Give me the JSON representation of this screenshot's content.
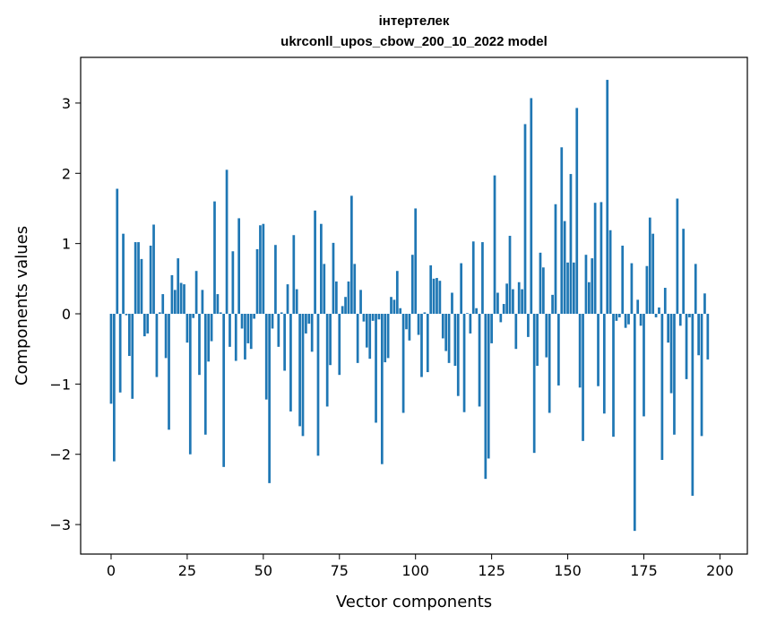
{
  "chart_data": {
    "type": "bar",
    "title": "інтертелек",
    "subtitle": "ukrconll_upos_cbow_200_10_2022 model",
    "xlabel": "Vector components",
    "ylabel": "Components values",
    "xlim": [
      -10,
      209
    ],
    "ylim": [
      -3.42,
      3.65
    ],
    "xticks": [
      0,
      25,
      50,
      75,
      100,
      125,
      150,
      175,
      200
    ],
    "yticks": [
      -3,
      -2,
      -1,
      0,
      1,
      2,
      3
    ],
    "xtick_labels": [
      "0",
      "25",
      "50",
      "75",
      "100",
      "125",
      "150",
      "175",
      "200"
    ],
    "ytick_labels": [
      "−3",
      "−2",
      "−1",
      "0",
      "1",
      "2",
      "3"
    ],
    "grid": false,
    "bar_color": "#1f77b4",
    "values": [
      -1.28,
      -2.1,
      1.78,
      -1.12,
      1.14,
      -0.02,
      -0.6,
      -1.21,
      1.02,
      1.02,
      0.78,
      -0.32,
      -0.28,
      0.97,
      1.27,
      -0.9,
      0.02,
      0.28,
      -0.63,
      -1.65,
      0.55,
      0.34,
      0.79,
      0.44,
      0.42,
      -0.41,
      -2.0,
      -0.06,
      0.61,
      -0.87,
      0.34,
      -1.72,
      -0.68,
      -0.39,
      1.6,
      0.28,
      0.02,
      -2.18,
      2.05,
      -0.47,
      0.89,
      -0.67,
      1.36,
      -0.21,
      -0.65,
      -0.42,
      -0.5,
      -0.07,
      0.92,
      1.26,
      1.28,
      -1.22,
      -2.41,
      -0.21,
      0.98,
      -0.47,
      0.02,
      -0.81,
      0.42,
      -1.39,
      1.12,
      0.35,
      -1.6,
      -1.74,
      -0.28,
      -0.14,
      -0.54,
      1.47,
      -2.02,
      1.28,
      0.71,
      -1.32,
      -0.73,
      1.01,
      0.46,
      -0.87,
      0.11,
      0.24,
      0.46,
      1.68,
      0.71,
      -0.7,
      0.34,
      -0.11,
      -0.48,
      -0.64,
      -0.1,
      -1.55,
      -0.08,
      -2.14,
      -0.69,
      -0.63,
      0.24,
      0.2,
      0.61,
      0.08,
      -1.41,
      -0.22,
      -0.38,
      0.84,
      1.5,
      -0.3,
      -0.9,
      0.02,
      -0.83,
      0.69,
      0.5,
      0.51,
      0.47,
      -0.35,
      -0.53,
      -0.7,
      0.3,
      -0.74,
      -1.17,
      0.72,
      -1.4,
      0.01,
      -0.28,
      1.03,
      0.08,
      -1.32,
      1.02,
      -2.35,
      -2.06,
      -0.42,
      1.97,
      0.3,
      -0.12,
      0.14,
      0.43,
      1.11,
      0.35,
      -0.5,
      0.45,
      0.35,
      2.7,
      -0.33,
      3.07,
      -1.98,
      -0.74,
      0.87,
      0.66,
      -0.62,
      -1.41,
      0.27,
      1.56,
      -1.02,
      2.37,
      1.32,
      0.73,
      1.99,
      0.73,
      2.93,
      -1.05,
      -1.81,
      0.84,
      0.45,
      0.79,
      1.58,
      -1.03,
      1.59,
      -1.42,
      3.33,
      1.19,
      -1.75,
      -0.1,
      -0.05,
      0.97,
      -0.2,
      -0.15,
      0.72,
      -3.09,
      0.2,
      -0.17,
      -1.46,
      0.68,
      1.37,
      1.14,
      -0.05,
      0.09,
      -2.08,
      0.37,
      -0.41,
      -1.13,
      -1.72,
      1.64,
      -0.17,
      1.21,
      -0.93,
      -0.05,
      -2.59,
      0.71,
      -0.59,
      -1.74,
      0.29,
      -0.65
    ]
  }
}
